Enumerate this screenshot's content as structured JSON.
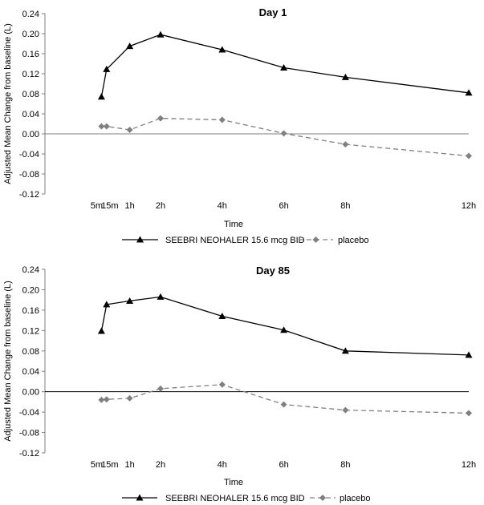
{
  "chart_data": [
    {
      "type": "line",
      "title": "Day 1",
      "xlabel": "Time",
      "ylabel": "Adjusted Mean Change from baseline (L)",
      "x_hours": [
        0.0833,
        0.25,
        1,
        2,
        4,
        6,
        8,
        12
      ],
      "x_tick_labels": [
        "5m",
        "15m",
        "1h",
        "2h",
        "4h",
        "6h",
        "8h",
        "12h"
      ],
      "y_ticks": [
        "-0.12",
        "-0.08",
        "-0.04",
        "0.00",
        "0.04",
        "0.08",
        "0.12",
        "0.16",
        "0.20",
        "0.24"
      ],
      "ylim": [
        -0.12,
        0.24
      ],
      "xlim": [
        -1.75,
        12
      ],
      "grid": false,
      "legend_position": "bottom",
      "series": [
        {
          "name": "SEEBRI NEOHALER 15.6 mcg BID",
          "color": "#000000",
          "dashed": false,
          "marker": "triangle",
          "values": [
            0.074,
            0.129,
            0.175,
            0.198,
            0.168,
            0.132,
            0.113,
            0.082
          ]
        },
        {
          "name": "placebo",
          "color": "#808080",
          "dashed": true,
          "marker": "diamond",
          "values": [
            0.015,
            0.015,
            0.008,
            0.031,
            0.028,
            0.001,
            -0.021,
            -0.044
          ]
        }
      ]
    },
    {
      "type": "line",
      "title": "Day 85",
      "xlabel": "Time",
      "ylabel": "Adjusted Mean Change from baseline (L)",
      "x_hours": [
        0.0833,
        0.25,
        1,
        2,
        4,
        6,
        8,
        12
      ],
      "x_tick_labels": [
        "5m",
        "15m",
        "1h",
        "2h",
        "4h",
        "6h",
        "8h",
        "12h"
      ],
      "y_ticks": [
        "-0.12",
        "-0.08",
        "-0.04",
        "0.00",
        "0.04",
        "0.08",
        "0.12",
        "0.16",
        "0.20",
        "0.24"
      ],
      "ylim": [
        -0.12,
        0.24
      ],
      "xlim": [
        -1.75,
        12
      ],
      "grid": false,
      "legend_position": "bottom",
      "series": [
        {
          "name": "SEEBRI NEOHALER 15.6 mcg BID",
          "color": "#000000",
          "dashed": false,
          "marker": "triangle",
          "values": [
            0.119,
            0.171,
            0.178,
            0.186,
            0.148,
            0.121,
            0.08,
            0.072
          ]
        },
        {
          "name": "placebo",
          "color": "#808080",
          "dashed": true,
          "marker": "diamond",
          "values": [
            -0.016,
            -0.015,
            -0.013,
            0.006,
            0.014,
            -0.025,
            -0.036,
            -0.042
          ]
        }
      ]
    }
  ]
}
